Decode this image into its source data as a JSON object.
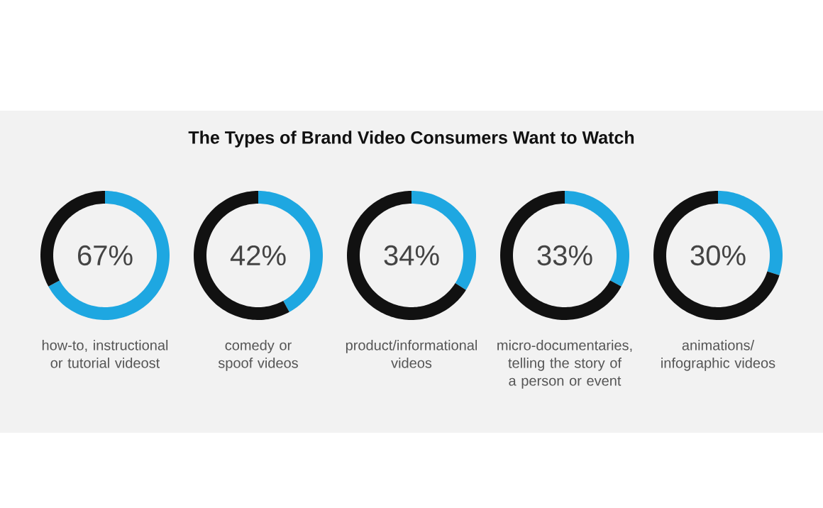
{
  "chart_data": [
    {
      "type": "other",
      "title": "The Types of Brand Video Consumers Want to Watch"
    },
    {
      "type": "donut",
      "title": "how-to, instructional or tutorial videost",
      "categories": [
        null,
        null
      ],
      "values": [
        67,
        33
      ],
      "colors": [
        "#1ea7e1",
        "#111111"
      ],
      "annotations": [
        "67%"
      ]
    },
    {
      "type": "donut",
      "title": "comedy or spoof videos",
      "categories": [
        null,
        null
      ],
      "values": [
        42,
        58
      ],
      "colors": [
        "#1ea7e1",
        "#111111"
      ],
      "annotations": [
        "42%"
      ]
    },
    {
      "type": "donut",
      "title": "product/informational videos",
      "categories": [
        null,
        null
      ],
      "values": [
        34,
        66
      ],
      "colors": [
        "#1ea7e1",
        "#111111"
      ],
      "annotations": [
        "34%"
      ]
    },
    {
      "type": "donut",
      "title": "micro-documentaries, telling the story of a person or event",
      "categories": [
        null,
        null
      ],
      "values": [
        33,
        67
      ],
      "colors": [
        "#1ea7e1",
        "#111111"
      ],
      "annotations": [
        "33%"
      ]
    },
    {
      "type": "donut",
      "title": "animations/ infographic videos",
      "categories": [
        null,
        null
      ],
      "values": [
        30,
        70
      ],
      "colors": [
        "#1ea7e1",
        "#111111"
      ],
      "annotations": [
        "30%"
      ]
    }
  ]
}
